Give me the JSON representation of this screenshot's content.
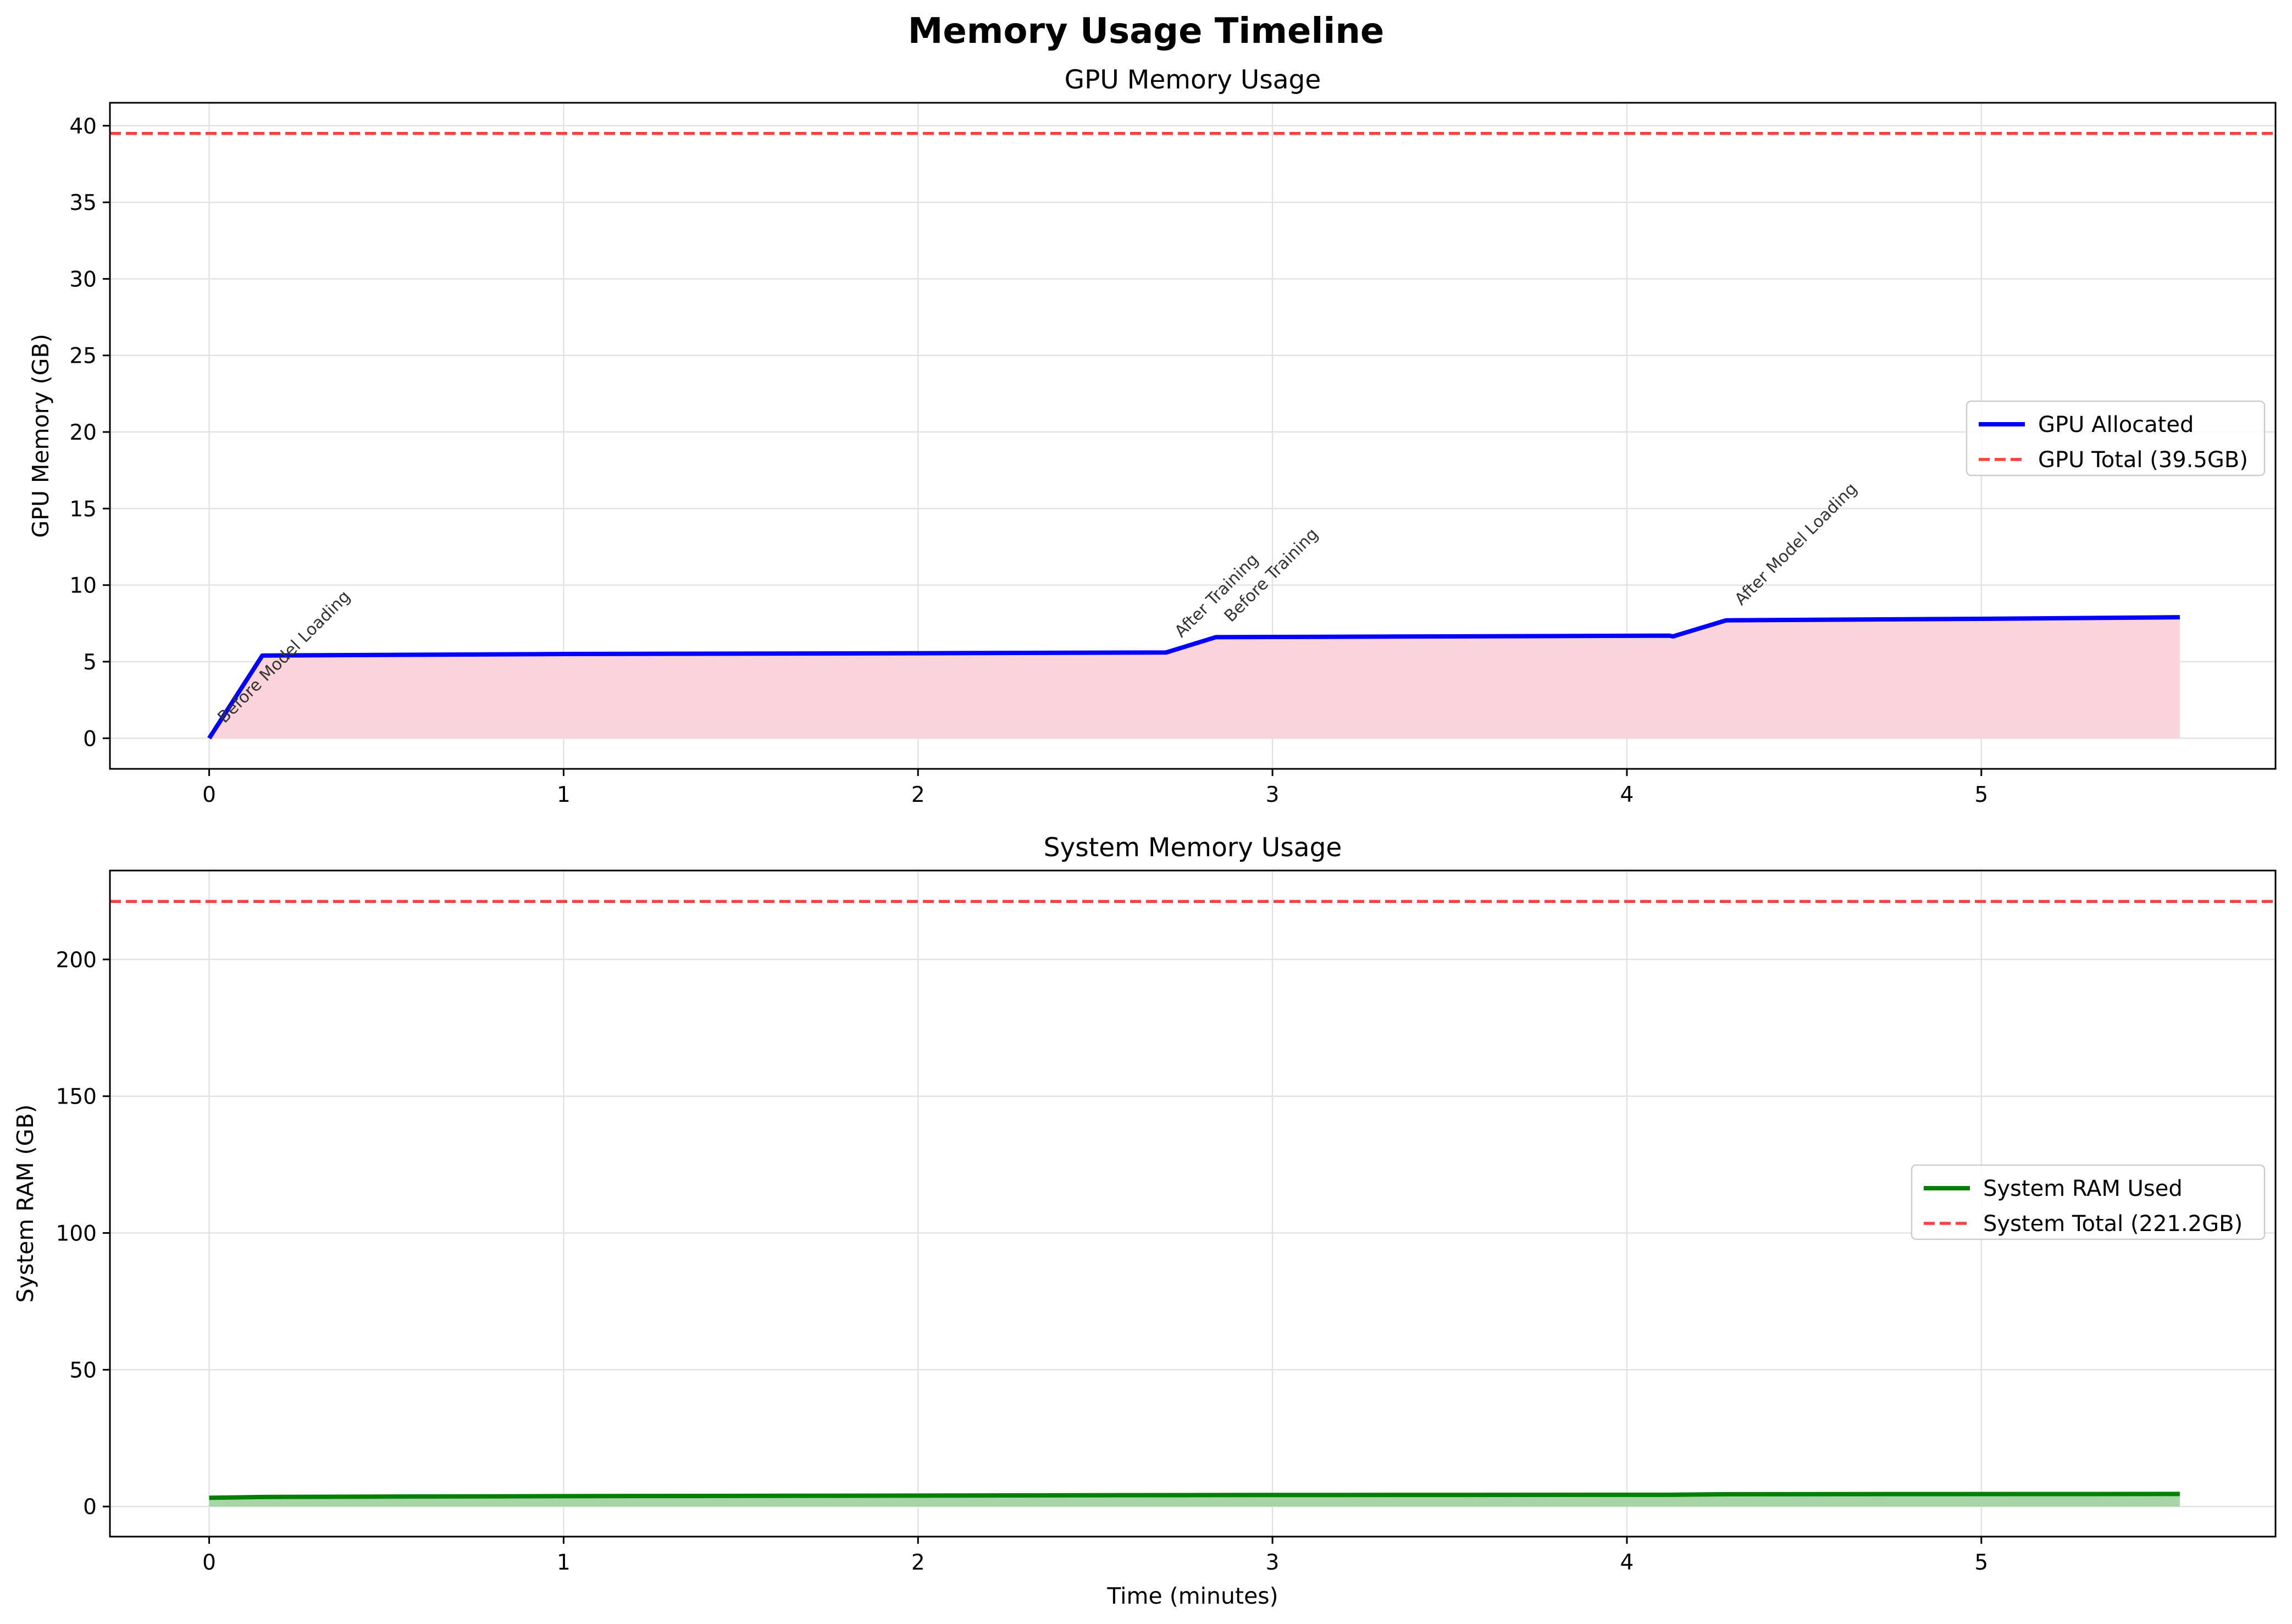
{
  "figure": {
    "title": "Memory Usage Timeline"
  },
  "colors": {
    "gpu_line": "#0000ff",
    "gpu_fill": "#fbd3dc",
    "ram_line": "#008000",
    "ram_fill": "#a8d5a8",
    "total_line": "#ff4040",
    "grid": "#e3e3e3"
  },
  "chart_data": [
    {
      "type": "area",
      "title": "GPU Memory Usage",
      "xlabel": "",
      "ylabel": "GPU Memory (GB)",
      "xlim": [
        -0.28,
        5.83
      ],
      "ylim": [
        -2.0,
        41.5
      ],
      "xticks": [
        0,
        1,
        2,
        3,
        4,
        5
      ],
      "yticks": [
        0,
        5,
        10,
        15,
        20,
        25,
        30,
        35,
        40
      ],
      "grid": true,
      "legend_position": "center-right",
      "series": [
        {
          "name": "GPU Allocated",
          "style": "solid",
          "x": [
            0,
            0.15,
            1.0,
            2.0,
            2.7,
            2.84,
            3.5,
            4.12,
            4.13,
            4.28,
            5.0,
            5.56
          ],
          "y": [
            0,
            5.4,
            5.5,
            5.55,
            5.6,
            6.6,
            6.65,
            6.7,
            6.65,
            7.7,
            7.8,
            7.9
          ]
        },
        {
          "name": "GPU Total (39.5GB)",
          "style": "dashed",
          "y": 39.5
        }
      ],
      "annotations": [
        {
          "text": "Before Model Loading",
          "x": 0.0,
          "y": 0
        },
        {
          "text": "After Training",
          "x": 2.7,
          "y": 5.6
        },
        {
          "text": "Before Training",
          "x": 2.84,
          "y": 6.6
        },
        {
          "text": "After Model Loading",
          "x": 4.28,
          "y": 7.7
        }
      ]
    },
    {
      "type": "area",
      "title": "System Memory Usage",
      "xlabel": "Time (minutes)",
      "ylabel": "System RAM (GB)",
      "xlim": [
        -0.28,
        5.83
      ],
      "ylim": [
        -11.0,
        232.5
      ],
      "xticks": [
        0,
        1,
        2,
        3,
        4,
        5
      ],
      "yticks": [
        0,
        50,
        100,
        150,
        200
      ],
      "grid": true,
      "legend_position": "center-right",
      "series": [
        {
          "name": "System RAM Used",
          "style": "solid",
          "x": [
            0,
            0.15,
            1.0,
            2.0,
            2.84,
            4.13,
            4.28,
            5.56
          ],
          "y": [
            3.2,
            3.5,
            3.8,
            4.0,
            4.2,
            4.3,
            4.5,
            4.6
          ]
        },
        {
          "name": "System Total (221.2GB)",
          "style": "dashed",
          "y": 221.2
        }
      ]
    }
  ]
}
